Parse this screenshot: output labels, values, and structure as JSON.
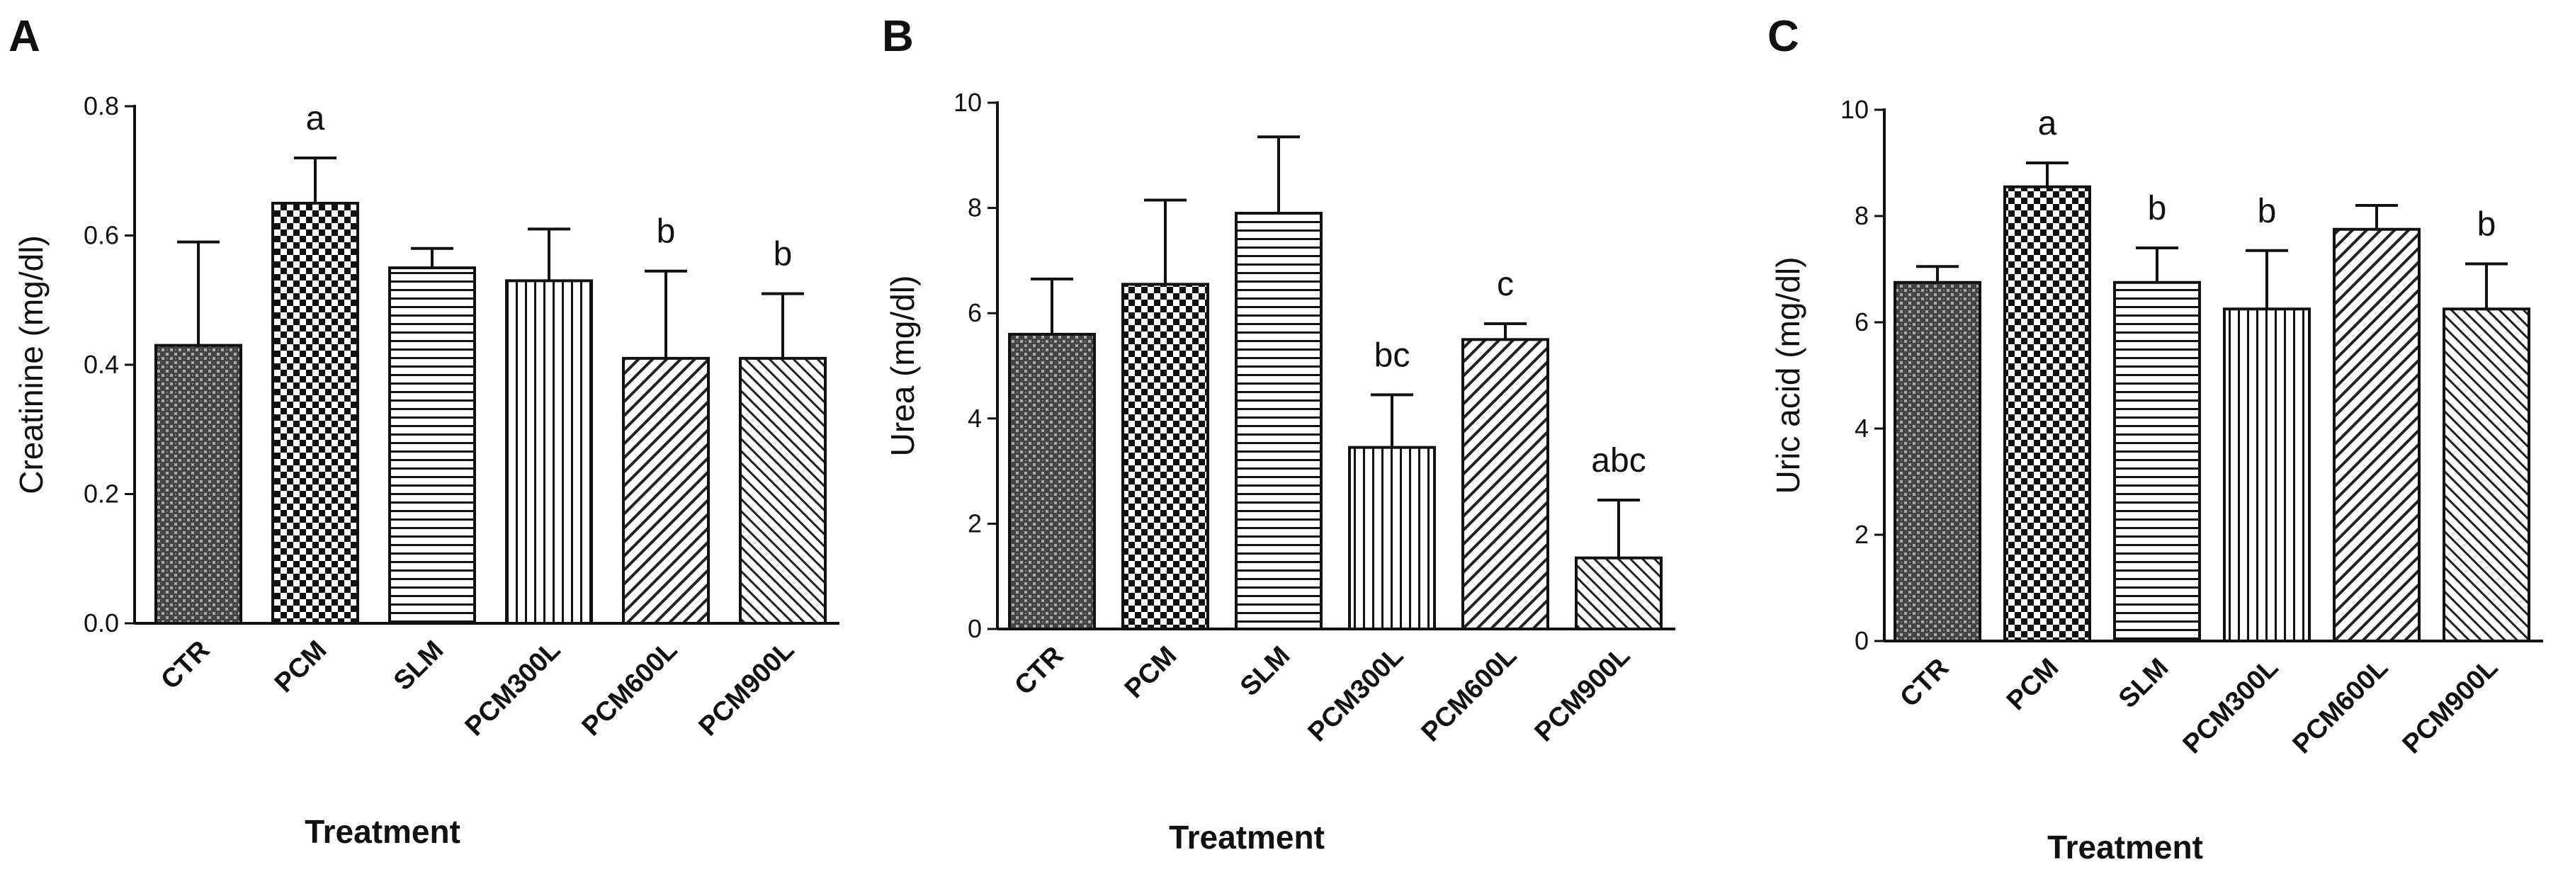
{
  "chart_data": [
    {
      "type": "bar",
      "panel": "A",
      "categories": [
        "CTR",
        "PCM",
        "SLM",
        "PCM300L",
        "PCM600L",
        "PCM900L"
      ],
      "values": [
        0.43,
        0.65,
        0.55,
        0.53,
        0.41,
        0.41
      ],
      "errors": [
        0.16,
        0.07,
        0.03,
        0.08,
        0.135,
        0.1
      ],
      "annotations": [
        "",
        "a",
        "",
        "",
        "b",
        "b"
      ],
      "xlabel": "Treatment",
      "ylabel": "Creatinine (mg/dl)",
      "ylim": [
        0,
        0.8
      ],
      "yticks": [
        0,
        0.2,
        0.4,
        0.6,
        0.8
      ],
      "ytick_labels": [
        "0.0",
        "0.2",
        "0.4",
        "0.6",
        "0.8"
      ],
      "grid": false
    },
    {
      "type": "bar",
      "panel": "B",
      "categories": [
        "CTR",
        "PCM",
        "SLM",
        "PCM300L",
        "PCM600L",
        "PCM900L"
      ],
      "values": [
        5.6,
        6.55,
        7.9,
        3.45,
        5.5,
        1.35
      ],
      "errors": [
        1.05,
        1.6,
        1.45,
        1.0,
        0.3,
        1.1
      ],
      "annotations": [
        "",
        "",
        "",
        "bc",
        "c",
        "abc"
      ],
      "xlabel": "Treatment",
      "ylabel": "Urea (mg/dl)",
      "ylim": [
        0,
        10
      ],
      "yticks": [
        0,
        2,
        4,
        6,
        8,
        10
      ],
      "ytick_labels": [
        "0",
        "2",
        "4",
        "6",
        "8",
        "10"
      ],
      "grid": false
    },
    {
      "type": "bar",
      "panel": "C",
      "categories": [
        "CTR",
        "PCM",
        "SLM",
        "PCM300L",
        "PCM600L",
        "PCM900L"
      ],
      "values": [
        6.75,
        8.55,
        6.75,
        6.25,
        7.75,
        6.25
      ],
      "errors": [
        0.3,
        0.45,
        0.65,
        1.1,
        0.45,
        0.85
      ],
      "annotations": [
        "",
        "a",
        "b",
        "b",
        "",
        "b"
      ],
      "xlabel": "Treatment",
      "ylabel": "Uric acid (mg/dl)",
      "ylim": [
        0,
        10
      ],
      "yticks": [
        0,
        2,
        4,
        6,
        8,
        10
      ],
      "ytick_labels": [
        "0",
        "2",
        "4",
        "6",
        "8",
        "10"
      ],
      "grid": false
    }
  ]
}
